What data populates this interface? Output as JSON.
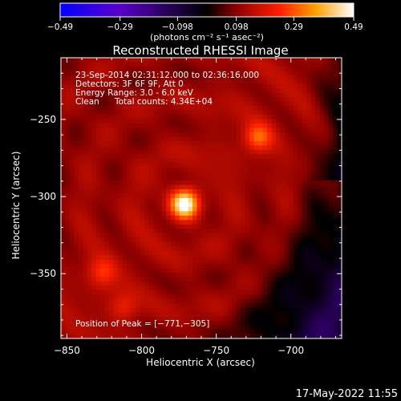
{
  "chart_data": {
    "type": "heatmap",
    "title": "Reconstructed RHESSI Image",
    "xlabel": "Heliocentric X (arcsec)",
    "ylabel": "Heliocentric Y (arcsec)",
    "xlim": [
      -854,
      -666
    ],
    "ylim": [
      -392,
      -210
    ],
    "x_ticks": [
      -850,
      -800,
      -750,
      -700
    ],
    "y_ticks": [
      -250,
      -300,
      -350
    ],
    "x_tick_labels": [
      "−850",
      "−800",
      "−750",
      "−700"
    ],
    "y_tick_labels": [
      "−250",
      "−300",
      "−350"
    ],
    "colorbar": {
      "range": [
        -0.49,
        0.49
      ],
      "tick_labels": [
        "−0.49",
        "−0.29",
        "−0.098",
        "0.098",
        "0.29",
        "0.49"
      ],
      "unit_label": "(photons cm⁻² s⁻¹ asec⁻²)",
      "colors": [
        "#0000ff",
        "#5a00c8",
        "#000000",
        "#8c0000",
        "#ff2000",
        "#ffa000",
        "#ffffff"
      ]
    },
    "annotations": [
      "23-Sep-2014 02:31:12.000 to 02:36:16.000",
      "Detectors: 3F 6F 9F, Att 0",
      "Energy Range: 3.0 - 6.0 keV",
      "Clean",
      "Total counts: 4.34E+04"
    ],
    "peak_label": "Position of Peak = [−771,−305]",
    "sources": [
      {
        "x": -771,
        "y": -305,
        "peak": 0.49
      },
      {
        "x": -722,
        "y": -262,
        "peak": 0.3
      },
      {
        "x": -826,
        "y": -349,
        "peak": 0.24
      },
      {
        "x": -812,
        "y": -372,
        "peak": 0.22
      }
    ]
  },
  "footer_timestamp": "17-May-2022 11:55"
}
